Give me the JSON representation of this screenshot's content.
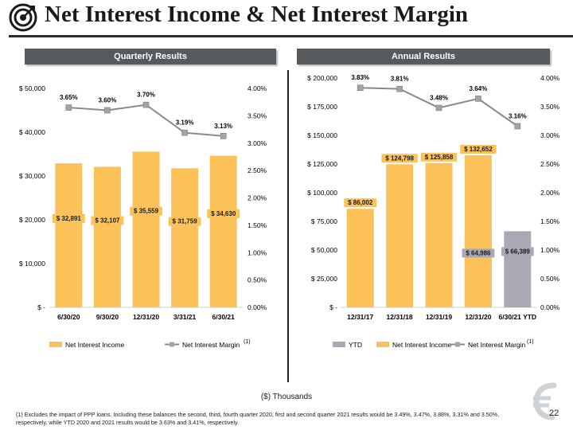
{
  "header": {
    "title": "Net Interest Income & Net Interest Margin"
  },
  "panels": {
    "quarterly": "Quarterly Results",
    "annual": "Annual Results"
  },
  "colors": {
    "nii": "#fcc25a",
    "ytd": "#a9a9b6",
    "line": "#898989",
    "marker": "#a4a4a4"
  },
  "chart_data": [
    {
      "type": "bar",
      "title": "Quarterly Results",
      "categories": [
        "6/30/20",
        "9/30/20",
        "12/31/20",
        "3/31/21",
        "6/30/21"
      ],
      "series": [
        {
          "name": "Net Interest Income",
          "kind": "bar",
          "axis": "left",
          "values": [
            32891,
            32107,
            35559,
            31759,
            34630
          ],
          "labels": [
            "$ 32,891",
            "$ 32,107",
            "$ 35,559",
            "$ 31,759",
            "$ 34,630"
          ]
        },
        {
          "name": "Net Interest Margin",
          "kind": "line",
          "axis": "right",
          "values": [
            3.65,
            3.6,
            3.7,
            3.19,
            3.13
          ],
          "labels": [
            "3.65%",
            "3.60%",
            "3.70%",
            "3.19%",
            "3.13%"
          ]
        }
      ],
      "ylim": [
        0,
        50000
      ],
      "y2lim": [
        0,
        4.0
      ],
      "yticks": [
        "$ -",
        "$ 10,000",
        "$ 20,000",
        "$ 30,000",
        "$ 40,000",
        "$ 50,000"
      ],
      "y2ticks": [
        "0.00%",
        "0.50%",
        "1.00%",
        "1.50%",
        "2.00%",
        "2.50%",
        "3.00%",
        "3.50%",
        "4.00%"
      ],
      "legend": [
        "Net Interest Income",
        "Net Interest Margin"
      ],
      "legend_note": "(1)",
      "legend_position": "bottom"
    },
    {
      "type": "bar",
      "title": "Annual Results",
      "categories": [
        "12/31/17",
        "12/31/18",
        "12/31/19",
        "12/31/20",
        "6/30/21 YTD"
      ],
      "series": [
        {
          "name": "YTD",
          "kind": "bar",
          "axis": "left",
          "values": [
            null,
            null,
            null,
            64986,
            66389
          ],
          "labels": [
            "",
            "",
            "",
            "$ 64,986",
            "$ 66,389"
          ]
        },
        {
          "name": "Net Interest Income",
          "kind": "bar",
          "axis": "left",
          "values": [
            86002,
            124798,
            125858,
            132652,
            null
          ],
          "labels": [
            "$ 86,002",
            "$ 124,798",
            "$ 125,858",
            "$ 132,652",
            ""
          ]
        },
        {
          "name": "Net Interest Margin",
          "kind": "line",
          "axis": "right",
          "values": [
            3.83,
            3.81,
            3.48,
            3.64,
            3.16
          ],
          "labels": [
            "3.83%",
            "3.81%",
            "3.48%",
            "3.64%",
            "3.16%"
          ]
        }
      ],
      "ylim": [
        0,
        200000
      ],
      "y2lim": [
        0,
        4.0
      ],
      "yticks": [
        "$ -",
        "$ 25,000",
        "$ 50,000",
        "$ 75,000",
        "$ 100,000",
        "$ 125,000",
        "$ 150,000",
        "$ 175,000",
        "$ 200,000"
      ],
      "y2ticks": [
        "0.00%",
        "0.50%",
        "1.00%",
        "1.50%",
        "2.00%",
        "2.50%",
        "3.00%",
        "3.50%",
        "4.00%"
      ],
      "legend": [
        "YTD",
        "Net Interest Income",
        "Net Interest Margin"
      ],
      "legend_note": "(1)",
      "legend_position": "bottom"
    }
  ],
  "units_note": "($) Thousands",
  "footnote": "(1) Excludes the impact of PPP loans.  Including these balances the second, third, fourth quarter 2020,  first and second quarter 2021 results would be 3.49%, 3.47%, 3.88%, 3.31% and 3.50%, respectively, while YTD 2020 and 2021 results would be 3.63% and 3.41%, respectively.",
  "page_number": "22"
}
